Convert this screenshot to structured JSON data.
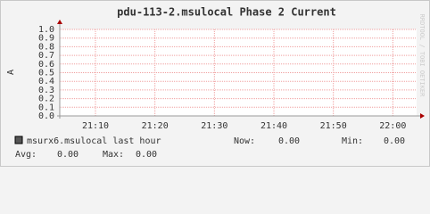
{
  "chart_data": {
    "type": "line",
    "title": "pdu-113-2.msulocal Phase 2 Current",
    "y_label": "A",
    "watermark": "RRDTOOL / TOBI OETIKER",
    "xlim": [
      1264,
      1324
    ],
    "xticks": [
      {
        "value": 1270,
        "label": "21:10"
      },
      {
        "value": 1280,
        "label": "21:20"
      },
      {
        "value": 1290,
        "label": "21:30"
      },
      {
        "value": 1300,
        "label": "21:40"
      },
      {
        "value": 1310,
        "label": "21:50"
      },
      {
        "value": 1320,
        "label": "22:00"
      }
    ],
    "ylim": [
      0,
      1
    ],
    "yticks": [
      {
        "value": 0,
        "label": "0.0"
      },
      0.1,
      0.2,
      0.3,
      0.4,
      0.5,
      0.6,
      0.7,
      0.8,
      0.9,
      {
        "value": 1,
        "label": "1.0"
      }
    ],
    "grid": true,
    "series": [
      {
        "name": "msurx6.msulocal last hour",
        "color": "#555555",
        "stats": [
          {
            "label": "Now:",
            "value": 0,
            "value_label": "0.00"
          },
          {
            "label": "Min:",
            "value": 0,
            "value_label": "0.00"
          },
          {
            "label": "Avg:",
            "value": 0,
            "value_label": "0.00"
          },
          {
            "label": "Max:",
            "value": 0,
            "value_label": "0.00"
          }
        ]
      }
    ]
  }
}
